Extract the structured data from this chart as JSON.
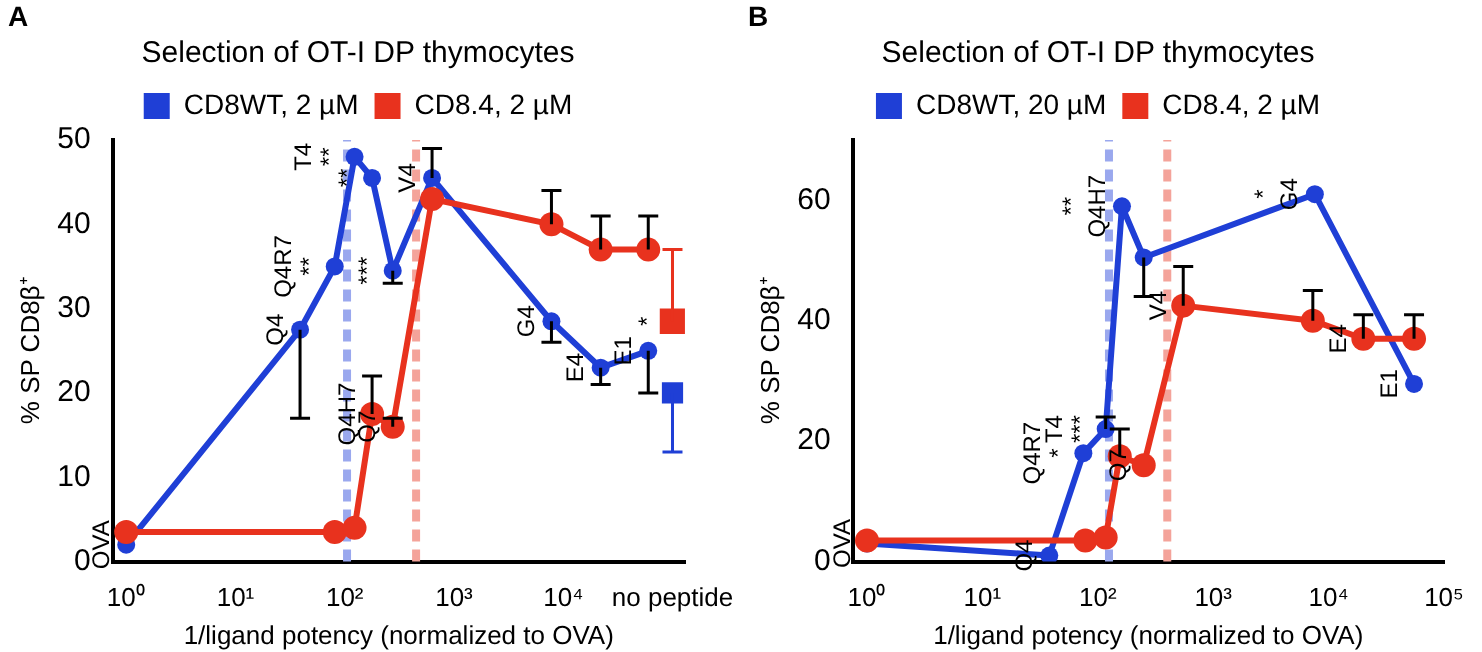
{
  "chart_data": [
    {
      "type": "line",
      "title": "Selection of OT-I DP thymocytes",
      "xlabel": "1/ligand potency (normalized to OVA)",
      "ylabel": "% SP CD8β⁺",
      "log": "x",
      "grid": false,
      "legend": "top",
      "marker": "circle",
      "xlim": [
        0.75,
        130000
      ],
      "xticks": [
        {
          "value": 1,
          "label": "10⁰"
        },
        {
          "value": 10,
          "label": "10¹"
        },
        {
          "value": 100,
          "label": "10²"
        },
        {
          "value": 1000,
          "label": "10³"
        },
        {
          "value": 10000,
          "label": "10⁴"
        },
        {
          "value": 100000,
          "label": "no peptide"
        }
      ],
      "ylim": [
        0,
        50
      ],
      "yticks": [
        0,
        10,
        20,
        30,
        40,
        50
      ],
      "series": [
        {
          "name": "CD8WT, 2 µM",
          "color": "#1f3fd6",
          "x": [
            1,
            39,
            81,
            123,
            178,
            275,
            630,
            7800,
            22000,
            60000
          ],
          "values": [
            2,
            27.5,
            35,
            48,
            45.5,
            34.5,
            45.5,
            28.5,
            23,
            25
          ],
          "errors": [
            null,
            [
              17,
              27.5
            ],
            null,
            null,
            null,
            [
              33,
              34.5
            ],
            [
              45.5,
              49
            ],
            [
              26,
              28.5
            ],
            [
              21,
              23
            ],
            [
              20,
              25
            ]
          ]
        },
        {
          "name": "CD8.4, 2 µM",
          "color": "#e8321e",
          "x": [
            1,
            81,
            123,
            178,
            275,
            630,
            7800,
            22000,
            60000
          ],
          "values": [
            3.5,
            3.5,
            4,
            17.5,
            16,
            43,
            40,
            37,
            37
          ],
          "errors": [
            null,
            null,
            null,
            [
              17.5,
              22
            ],
            [
              16,
              17
            ],
            null,
            [
              40,
              44
            ],
            [
              37,
              41
            ],
            [
              37,
              41
            ]
          ]
        },
        {
          "type": "scatter",
          "marker": "square",
          "color": "#1f3fd6",
          "x": [
            100000
          ],
          "values": [
            20
          ],
          "errors": [
            [
              13,
              20
            ]
          ]
        },
        {
          "type": "scatter",
          "marker": "square",
          "color": "#e8321e",
          "x": [
            100000
          ],
          "values": [
            28.5
          ],
          "errors": [
            [
              28.5,
              37
            ]
          ]
        }
      ],
      "ref_lines": [
        {
          "axis": "x",
          "value": 105,
          "color": "#9aa8ee",
          "line_style": "dashed"
        },
        {
          "axis": "x",
          "value": 450,
          "color": "#f4a39a",
          "line_style": "dashed"
        }
      ],
      "annotations": [
        "A",
        {
          "text": "OVA",
          "x": 1,
          "y": 2
        },
        {
          "text": "Q4",
          "x": 39,
          "y": 27.5
        },
        {
          "text": "**",
          "x": 81,
          "y": 35
        },
        {
          "text": "Q4R7",
          "x": 81,
          "y": 35
        },
        {
          "text": "**",
          "x": 123,
          "y": 48
        },
        {
          "text": "T4",
          "x": 123,
          "y": 48
        },
        {
          "text": "Q4H7",
          "x": 178,
          "y": 17.5
        },
        {
          "text": "Q7",
          "x": 275,
          "y": 16
        },
        {
          "text": "V4",
          "x": 630,
          "y": 45.5
        },
        {
          "text": "G4",
          "x": 7800,
          "y": 28.5
        },
        {
          "text": "E4",
          "x": 22000,
          "y": 23
        },
        {
          "text": "E1",
          "x": 60000,
          "y": 25
        },
        {
          "text": "**",
          "x": 178,
          "y": 45.5
        },
        {
          "text": "***",
          "x": 275,
          "y": 34.5
        },
        {
          "text": "*",
          "x": 100000,
          "y": 28.5
        }
      ]
    },
    {
      "type": "line",
      "title": "Selection of OT-I DP thymocytes",
      "xlabel": "1/ligand potency (normalized to OVA)",
      "ylabel": "% SP CD8β⁺",
      "log": "x",
      "grid": false,
      "legend": "top",
      "marker": "circle",
      "xlim": [
        0.75,
        100000
      ],
      "xticks": [
        {
          "value": 1,
          "label": "10⁰"
        },
        {
          "value": 10,
          "label": "10¹"
        },
        {
          "value": 100,
          "label": "10²"
        },
        {
          "value": 1000,
          "label": "10³"
        },
        {
          "value": 10000,
          "label": "10⁴"
        },
        {
          "value": 100000,
          "label": "10⁵"
        }
      ],
      "ylim": [
        0,
        70
      ],
      "yticks": [
        0,
        20,
        40,
        60
      ],
      "series": [
        {
          "name": "CD8WT, 20 µM",
          "color": "#1f3fd6",
          "x": [
            1,
            38,
            75,
            117,
            162,
            250,
            7600,
            55000
          ],
          "values": [
            3,
            1,
            18,
            22,
            59,
            50.5,
            61,
            29.5
          ],
          "errors": [
            null,
            null,
            null,
            [
              22,
              24
            ],
            null,
            [
              44,
              50.5
            ],
            null,
            null
          ]
        },
        {
          "name": "CD8.4, 2 µM",
          "color": "#e8321e",
          "x": [
            1,
            78,
            117,
            155,
            250,
            550,
            7300,
            20000,
            55000
          ],
          "values": [
            3.5,
            3.5,
            4,
            17.5,
            16,
            42.5,
            40,
            37,
            37
          ],
          "errors": [
            null,
            null,
            null,
            [
              17.5,
              22
            ],
            null,
            [
              42.5,
              49
            ],
            [
              40,
              45
            ],
            [
              37,
              41
            ],
            [
              37,
              41
            ]
          ]
        }
      ],
      "ref_lines": [
        {
          "axis": "x",
          "value": 125,
          "color": "#9aa8ee",
          "line_style": "dashed"
        },
        {
          "axis": "x",
          "value": 400,
          "color": "#f4a39a",
          "line_style": "dashed"
        }
      ],
      "annotations": [
        "B",
        {
          "text": "OVA",
          "x": 1,
          "y": 3
        },
        {
          "text": "Q4",
          "x": 38,
          "y": 1
        },
        {
          "text": "*",
          "x": 75,
          "y": 18
        },
        {
          "text": "Q4R7",
          "x": 75,
          "y": 18
        },
        {
          "text": "***",
          "x": 117,
          "y": 22
        },
        {
          "text": "T4",
          "x": 117,
          "y": 22
        },
        {
          "text": "Q4H7",
          "x": 162,
          "y": 59
        },
        {
          "text": "Q7",
          "x": 250,
          "y": 16
        },
        {
          "text": "V4",
          "x": 550,
          "y": 42.5
        },
        {
          "text": "G4",
          "x": 7600,
          "y": 61
        },
        {
          "text": "E4",
          "x": 20000,
          "y": 37
        },
        {
          "text": "E1",
          "x": 55000,
          "y": 29.5
        },
        {
          "text": "**",
          "x": 162,
          "y": 59
        },
        {
          "text": "*",
          "x": 7600,
          "y": 61
        }
      ]
    }
  ]
}
